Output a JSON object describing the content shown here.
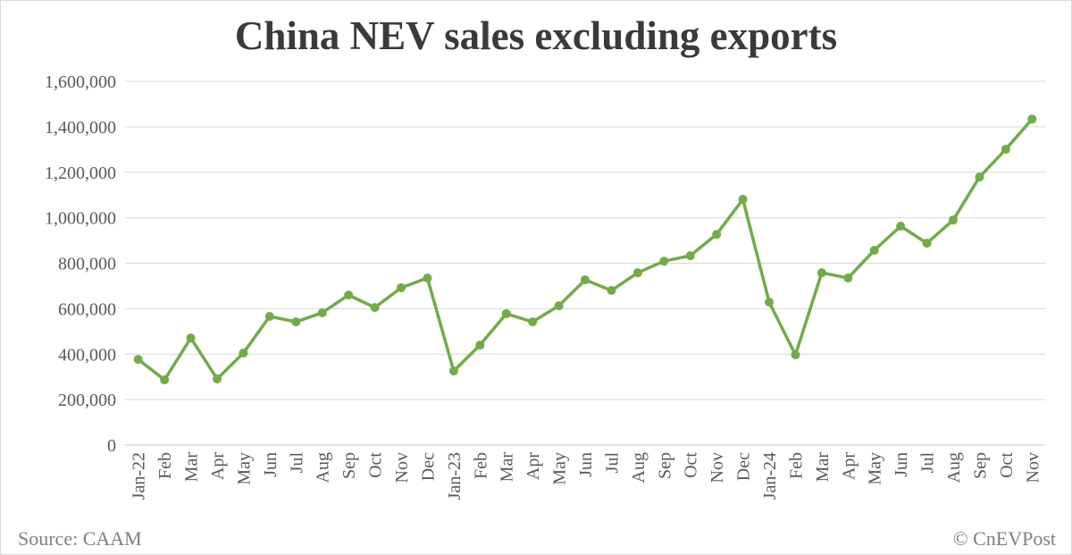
{
  "chart_data": {
    "type": "line",
    "title": "China NEV sales excluding exports",
    "xlabel": "",
    "ylabel": "",
    "ylim": [
      0,
      1600000
    ],
    "yticks": [
      "0",
      "200,000",
      "400,000",
      "600,000",
      "800,000",
      "1,000,000",
      "1,200,000",
      "1,400,000",
      "1,600,000"
    ],
    "grid": true,
    "color": "#70ad47",
    "categories": [
      "Jan-22",
      "Feb",
      "Mar",
      "Apr",
      "May",
      "Jun",
      "Jul",
      "Aug",
      "Sep",
      "Oct",
      "Nov",
      "Dec",
      "Jan-23",
      "Feb",
      "Mar",
      "Apr",
      "May",
      "Jun",
      "Jul",
      "Aug",
      "Sep",
      "Oct",
      "Nov",
      "Dec",
      "Jan-24",
      "Feb",
      "Mar",
      "Apr",
      "May",
      "Jun",
      "Jul",
      "Aug",
      "Sep",
      "Oct",
      "Nov"
    ],
    "values": [
      377000,
      287000,
      471000,
      291000,
      405000,
      566000,
      542000,
      582000,
      660000,
      605000,
      692000,
      735000,
      326000,
      440000,
      578000,
      542000,
      613000,
      727000,
      680000,
      758000,
      809000,
      833000,
      927000,
      1081000,
      629000,
      397000,
      758000,
      735000,
      857000,
      963000,
      888000,
      990000,
      1179000,
      1301000,
      1434000
    ]
  },
  "footer": {
    "source": "Source: CAAM",
    "credit": "© CnEVPost"
  }
}
